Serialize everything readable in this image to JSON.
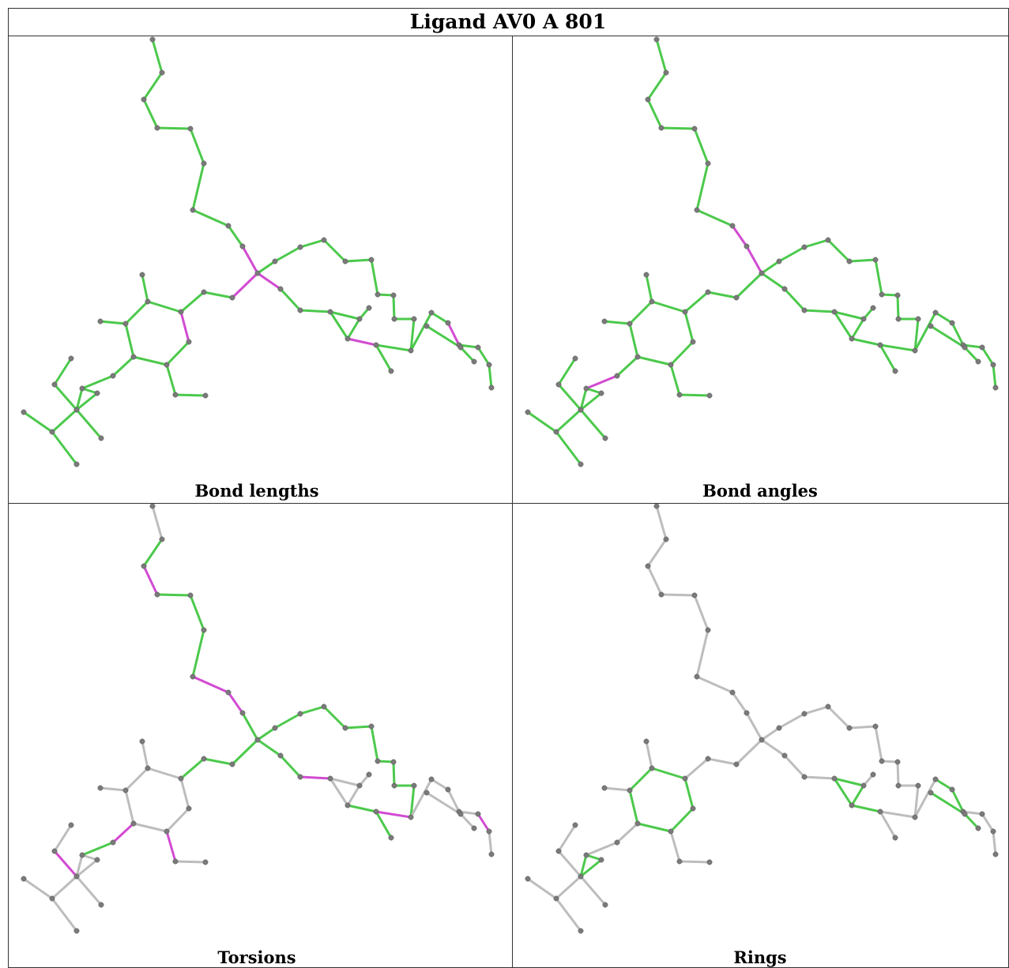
{
  "header": {
    "title": "Ligand AV0 A 801"
  },
  "panels": [
    {
      "caption": "Bond lengths"
    },
    {
      "caption": "Bond angles"
    },
    {
      "caption": "Torsions"
    },
    {
      "caption": "Rings"
    }
  ]
}
